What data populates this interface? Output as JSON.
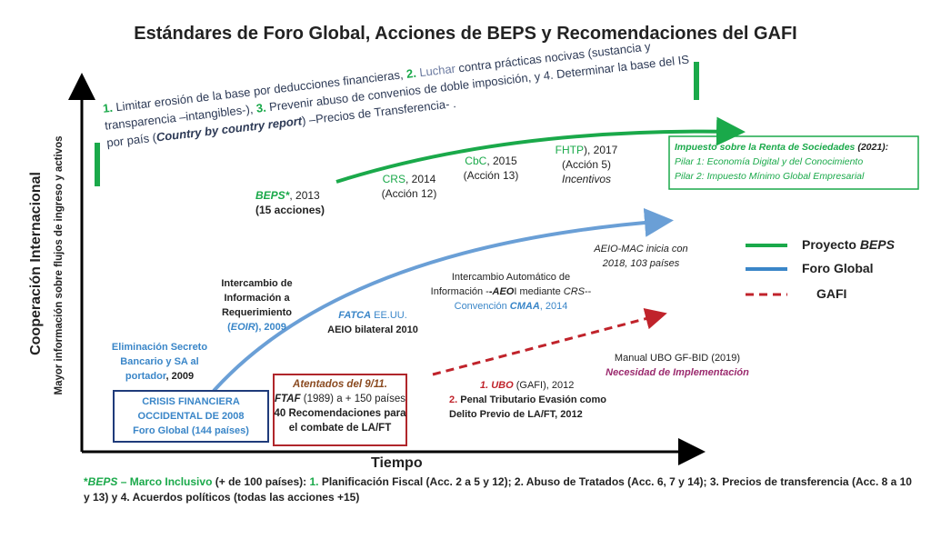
{
  "title": "Estándares de Foro Global, Acciones de BEPS y Recomendaciones del GAFI",
  "axes": {
    "y_label": "Cooperación Internacional",
    "y_sublabel": "Mayor información sobre flujos de ingreso y activos",
    "x_label": "Tiempo"
  },
  "beps_goals": [
    "1.",
    " Limitar erosión de la base por deducciones financieras, ",
    "2.",
    " Luchar",
    " contra prácticas  nocivas (sustancia y transparencia –intangibles-), ",
    "3.",
    " Prevenir abuso de convenios de doble imposición, y 4. Determinar la base del IS por país (",
    "Country by country report",
    ") –Precios de Transferencia- ."
  ],
  "beps": [
    "BEPS*",
    ", 2013",
    "(15 acciones)"
  ],
  "crs": [
    "CRS",
    ", 2014",
    "(Acción 12)"
  ],
  "cbc": [
    "CbC",
    ", 2015",
    "(Acción 13)"
  ],
  "fhtp": [
    "FHTP",
    "),  2017",
    "(Acción 5)",
    "Incentivos"
  ],
  "isr": [
    "Impuesto sobre la Renta de Sociedades",
    " (2021):",
    "Pilar 1: Economía  Digital y del Conocimiento",
    "Pilar 2: Impuesto Mínimo Global Empresarial"
  ],
  "aeio_mac": [
    "AEIO-MAC inicia con",
    "2018, 103 países"
  ],
  "aeoi": [
    "Intercambio Automático de",
    "Información -",
    "-AEO",
    "I mediante ",
    "CRS",
    "--",
    "Convención ",
    "CMAA",
    ", 2014"
  ],
  "fatca": [
    "FATCA",
    " EE.UU.",
    "AEIO bilateral 2010"
  ],
  "eoir": [
    "Intercambio de",
    "Información a",
    "Requerimiento",
    "(",
    "EOIR",
    "), 2009"
  ],
  "secreto": [
    "Eliminación Secreto",
    "Bancario y SA al",
    "portador",
    ", 2009"
  ],
  "crisis": [
    "CRISIS FINANCIERA",
    "OCCIDENTAL DE 2008",
    "Foro Global (144 países)"
  ],
  "atentados": [
    "Atentados del 9/11.",
    "FTAF",
    " (1989) a + 150 países",
    "40 Recomendaciones para",
    "el combate de LA/FT"
  ],
  "ubo": [
    "1. UBO",
    " (GAFI), 2012",
    "2.",
    " Penal Tributario Evasión como",
    "Delito Previo de LA/FT, 2012"
  ],
  "manual": [
    "Manual UBO GF-BID  (2019)",
    "Necesidad de Implementación"
  ],
  "legend": [
    "Proyecto ",
    "BEPS",
    "Foro Global",
    "GAFI"
  ],
  "footnote": [
    "*",
    "BEPS",
    " – Marco Inclusivo",
    " (+ de 100 países): ",
    "1.",
    " Planificación Fiscal (Acc. 2 a 5 y 12);  2. Abuso de Tratados (Acc. 6, 7 y 14); 3. Precios de transferencia (Acc. 8 a 10 y 13) y 4. Acuerdos políticos (todas las acciones +15)"
  ]
}
